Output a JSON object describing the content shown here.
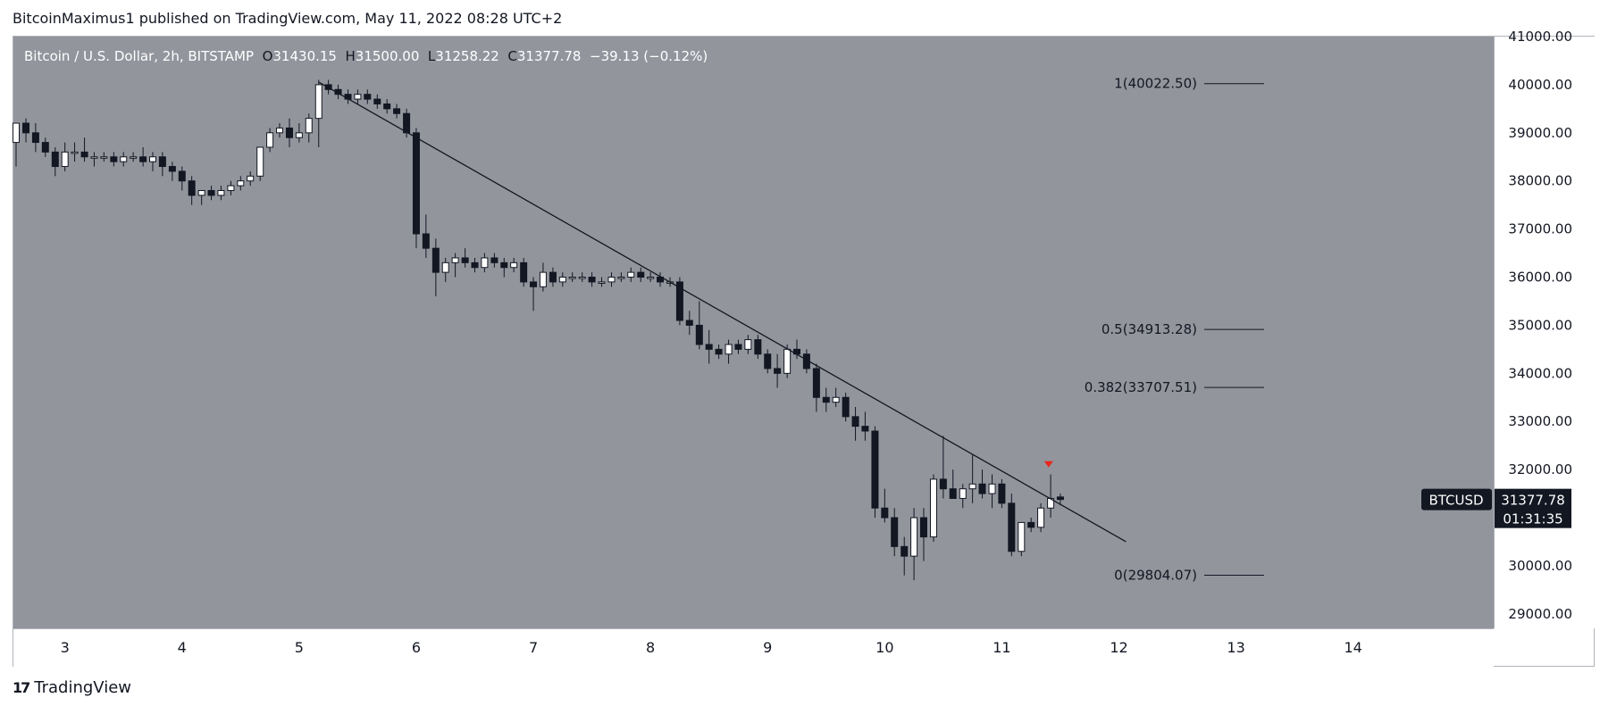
{
  "header": {
    "credit": "BitcoinMaximus1 published on TradingView.com, May 11, 2022 08:28 UTC+2"
  },
  "legend": {
    "symbol": "Bitcoin / U.S. Dollar, 2h, BITSTAMP",
    "o_label": "O",
    "o_value": "31430.15",
    "h_label": "H",
    "h_value": "31500.00",
    "l_label": "L",
    "l_value": "31258.22",
    "c_label": "C",
    "c_value": "31377.78",
    "change": "−39.13 (−0.12%)"
  },
  "currency_badge": "USD",
  "price_tag": {
    "symbol": "BTCUSD",
    "price": "31377.78",
    "countdown": "01:31:35"
  },
  "footer": {
    "brand": "TradingView",
    "mark": "17"
  },
  "colors": {
    "plot_bg": "#93959d",
    "up": "#ffffff",
    "down": "#131722",
    "line": "#131722",
    "marker": "#e8251b",
    "tag_bg": "#131722"
  },
  "chart_data": {
    "type": "candlestick",
    "title": "Bitcoin / U.S. Dollar, 2h, BITSTAMP",
    "ylim": [
      28700,
      41000
    ],
    "y_ticks": [
      29000,
      30000,
      31000,
      32000,
      33000,
      34000,
      35000,
      36000,
      37000,
      38000,
      39000,
      40000,
      41000
    ],
    "y_tick_labels": [
      "29000.00",
      "30000.00",
      "",
      "32000.00",
      "33000.00",
      "34000.00",
      "35000.00",
      "36000.00",
      "37000.00",
      "38000.00",
      "39000.00",
      "40000.00",
      "41000.00"
    ],
    "x_ticks": [
      3,
      4,
      5,
      6,
      7,
      8,
      9,
      10,
      11,
      12,
      13,
      14
    ],
    "x_tick_labels": [
      "3",
      "4",
      "5",
      "6",
      "7",
      "8",
      "9",
      "10",
      "11",
      "12",
      "13",
      "14"
    ],
    "xlim": [
      2.56,
      15.2
    ],
    "grid": false,
    "candles": [
      [
        2.583,
        38800,
        39100,
        38300,
        39200
      ],
      [
        2.667,
        39200,
        39300,
        38800,
        39000
      ],
      [
        2.75,
        39000,
        39200,
        38600,
        38800
      ],
      [
        2.833,
        38800,
        38900,
        38500,
        38600
      ],
      [
        2.917,
        38600,
        38700,
        38100,
        38300
      ],
      [
        3.0,
        38300,
        38800,
        38200,
        38600
      ],
      [
        3.083,
        38600,
        38800,
        38400,
        38600
      ],
      [
        3.167,
        38600,
        38900,
        38400,
        38500
      ],
      [
        3.25,
        38500,
        38600,
        38300,
        38500
      ],
      [
        3.333,
        38500,
        38600,
        38400,
        38500
      ],
      [
        3.417,
        38500,
        38600,
        38300,
        38400
      ],
      [
        3.5,
        38400,
        38600,
        38300,
        38500
      ],
      [
        3.583,
        38500,
        38600,
        38400,
        38500
      ],
      [
        3.667,
        38500,
        38700,
        38300,
        38400
      ],
      [
        3.75,
        38400,
        38600,
        38200,
        38500
      ],
      [
        3.833,
        38500,
        38600,
        38100,
        38300
      ],
      [
        3.917,
        38300,
        38400,
        38000,
        38200
      ],
      [
        4.0,
        38200,
        38300,
        37800,
        38000
      ],
      [
        4.083,
        38000,
        38100,
        37500,
        37700
      ],
      [
        4.167,
        37700,
        37800,
        37500,
        37800
      ],
      [
        4.25,
        37800,
        37900,
        37600,
        37700
      ],
      [
        4.333,
        37700,
        37900,
        37600,
        37800
      ],
      [
        4.417,
        37800,
        38000,
        37700,
        37900
      ],
      [
        4.5,
        37900,
        38100,
        37800,
        38000
      ],
      [
        4.583,
        38000,
        38200,
        37900,
        38100
      ],
      [
        4.667,
        38100,
        38700,
        38000,
        38700
      ],
      [
        4.75,
        38700,
        39100,
        38600,
        39000
      ],
      [
        4.833,
        39000,
        39200,
        38900,
        39100
      ],
      [
        4.917,
        39100,
        39300,
        38700,
        38900
      ],
      [
        5.0,
        38900,
        39200,
        38800,
        39000
      ],
      [
        5.083,
        39000,
        39400,
        38800,
        39300
      ],
      [
        5.167,
        39300,
        40100,
        38700,
        40000
      ],
      [
        5.25,
        40000,
        40100,
        39800,
        39900
      ],
      [
        5.333,
        39900,
        40000,
        39700,
        39800
      ],
      [
        5.417,
        39800,
        39900,
        39600,
        39700
      ],
      [
        5.5,
        39700,
        39900,
        39600,
        39800
      ],
      [
        5.583,
        39800,
        39900,
        39600,
        39700
      ],
      [
        5.667,
        39700,
        39800,
        39500,
        39600
      ],
      [
        5.75,
        39600,
        39700,
        39400,
        39500
      ],
      [
        5.833,
        39500,
        39600,
        39300,
        39400
      ],
      [
        5.917,
        39400,
        39500,
        38900,
        39000
      ],
      [
        6.0,
        39000,
        39100,
        36600,
        36900
      ],
      [
        6.083,
        36900,
        37300,
        36400,
        36600
      ],
      [
        6.167,
        36600,
        36800,
        35600,
        36100
      ],
      [
        6.25,
        36100,
        36400,
        35900,
        36300
      ],
      [
        6.333,
        36300,
        36500,
        36000,
        36400
      ],
      [
        6.417,
        36400,
        36600,
        36200,
        36300
      ],
      [
        6.5,
        36300,
        36400,
        36100,
        36200
      ],
      [
        6.583,
        36200,
        36500,
        36100,
        36400
      ],
      [
        6.667,
        36400,
        36500,
        36200,
        36300
      ],
      [
        6.75,
        36300,
        36400,
        36000,
        36200
      ],
      [
        6.833,
        36200,
        36400,
        36100,
        36300
      ],
      [
        6.917,
        36300,
        36400,
        35800,
        35900
      ],
      [
        7.0,
        35900,
        36000,
        35300,
        35800
      ],
      [
        7.083,
        35800,
        36300,
        35700,
        36100
      ],
      [
        7.167,
        36100,
        36200,
        35800,
        35900
      ],
      [
        7.25,
        35900,
        36100,
        35800,
        36000
      ],
      [
        7.333,
        36000,
        36100,
        35900,
        36000
      ],
      [
        7.417,
        36000,
        36100,
        35900,
        36000
      ],
      [
        7.5,
        36000,
        36100,
        35800,
        35900
      ],
      [
        7.583,
        35900,
        36000,
        35800,
        35900
      ],
      [
        7.667,
        35900,
        36100,
        35800,
        36000
      ],
      [
        7.75,
        36000,
        36100,
        35900,
        36000
      ],
      [
        7.833,
        36000,
        36200,
        35900,
        36100
      ],
      [
        7.917,
        36100,
        36200,
        35900,
        36000
      ],
      [
        8.0,
        36000,
        36100,
        35900,
        36000
      ],
      [
        8.083,
        36000,
        36100,
        35800,
        35900
      ],
      [
        8.167,
        35900,
        36000,
        35800,
        35900
      ],
      [
        8.25,
        35900,
        36000,
        35000,
        35100
      ],
      [
        8.333,
        35100,
        35300,
        34800,
        35000
      ],
      [
        8.417,
        35000,
        35500,
        34500,
        34600
      ],
      [
        8.5,
        34600,
        34900,
        34200,
        34500
      ],
      [
        8.583,
        34500,
        34600,
        34300,
        34400
      ],
      [
        8.667,
        34400,
        34700,
        34200,
        34600
      ],
      [
        8.75,
        34600,
        34700,
        34400,
        34500
      ],
      [
        8.833,
        34500,
        34800,
        34400,
        34700
      ],
      [
        8.917,
        34700,
        34800,
        34300,
        34400
      ],
      [
        9.0,
        34400,
        34500,
        34000,
        34100
      ],
      [
        9.083,
        34100,
        34400,
        33700,
        34000
      ],
      [
        9.167,
        34000,
        34600,
        33900,
        34500
      ],
      [
        9.25,
        34500,
        34700,
        34300,
        34400
      ],
      [
        9.333,
        34400,
        34500,
        34000,
        34100
      ],
      [
        9.417,
        34100,
        34200,
        33200,
        33500
      ],
      [
        9.5,
        33500,
        33700,
        33200,
        33400
      ],
      [
        9.583,
        33400,
        33700,
        33300,
        33500
      ],
      [
        9.667,
        33500,
        33600,
        33000,
        33100
      ],
      [
        9.75,
        33100,
        33300,
        32600,
        32900
      ],
      [
        9.833,
        32900,
        33200,
        32600,
        32800
      ],
      [
        9.917,
        32800,
        32900,
        31000,
        31200
      ],
      [
        10.0,
        31200,
        31600,
        30900,
        31000
      ],
      [
        10.083,
        31000,
        31200,
        30200,
        30400
      ],
      [
        10.167,
        30400,
        30600,
        29800,
        30200
      ],
      [
        10.25,
        30200,
        31200,
        29700,
        31000
      ],
      [
        10.333,
        31000,
        31200,
        30100,
        30600
      ],
      [
        10.417,
        30600,
        31900,
        30500,
        31800
      ],
      [
        10.5,
        31800,
        32700,
        31400,
        31600
      ],
      [
        10.583,
        31600,
        32000,
        31400,
        31400
      ],
      [
        10.667,
        31400,
        31700,
        31200,
        31600
      ],
      [
        10.75,
        31600,
        32300,
        31300,
        31700
      ],
      [
        10.833,
        31700,
        32000,
        31400,
        31500
      ],
      [
        10.917,
        31500,
        31900,
        31200,
        31700
      ],
      [
        11.0,
        31700,
        31800,
        31200,
        31300
      ],
      [
        11.083,
        31300,
        31500,
        30200,
        30300
      ],
      [
        11.167,
        30300,
        30900,
        30200,
        30900
      ],
      [
        11.25,
        30900,
        31000,
        30700,
        30800
      ],
      [
        11.333,
        30800,
        31300,
        30700,
        31200
      ],
      [
        11.417,
        31200,
        31900,
        31000,
        31400
      ],
      [
        11.5,
        31430.15,
        31500,
        31258.22,
        31377.78
      ]
    ],
    "trendline": [
      [
        5.17,
        40050
      ],
      [
        12.06,
        30500
      ]
    ],
    "fib_levels": [
      {
        "level": "1",
        "price": 40022.5,
        "label": "1(40022.50)"
      },
      {
        "level": "0.5",
        "price": 34913.28,
        "label": "0.5(34913.28)"
      },
      {
        "level": "0.382",
        "price": 33707.51,
        "label": "0.382(33707.51)"
      },
      {
        "level": "0",
        "price": 29804.07,
        "label": "0(29804.07)"
      }
    ],
    "marker": {
      "x": 11.4,
      "price": 32100
    },
    "last_price": 31377.78
  }
}
